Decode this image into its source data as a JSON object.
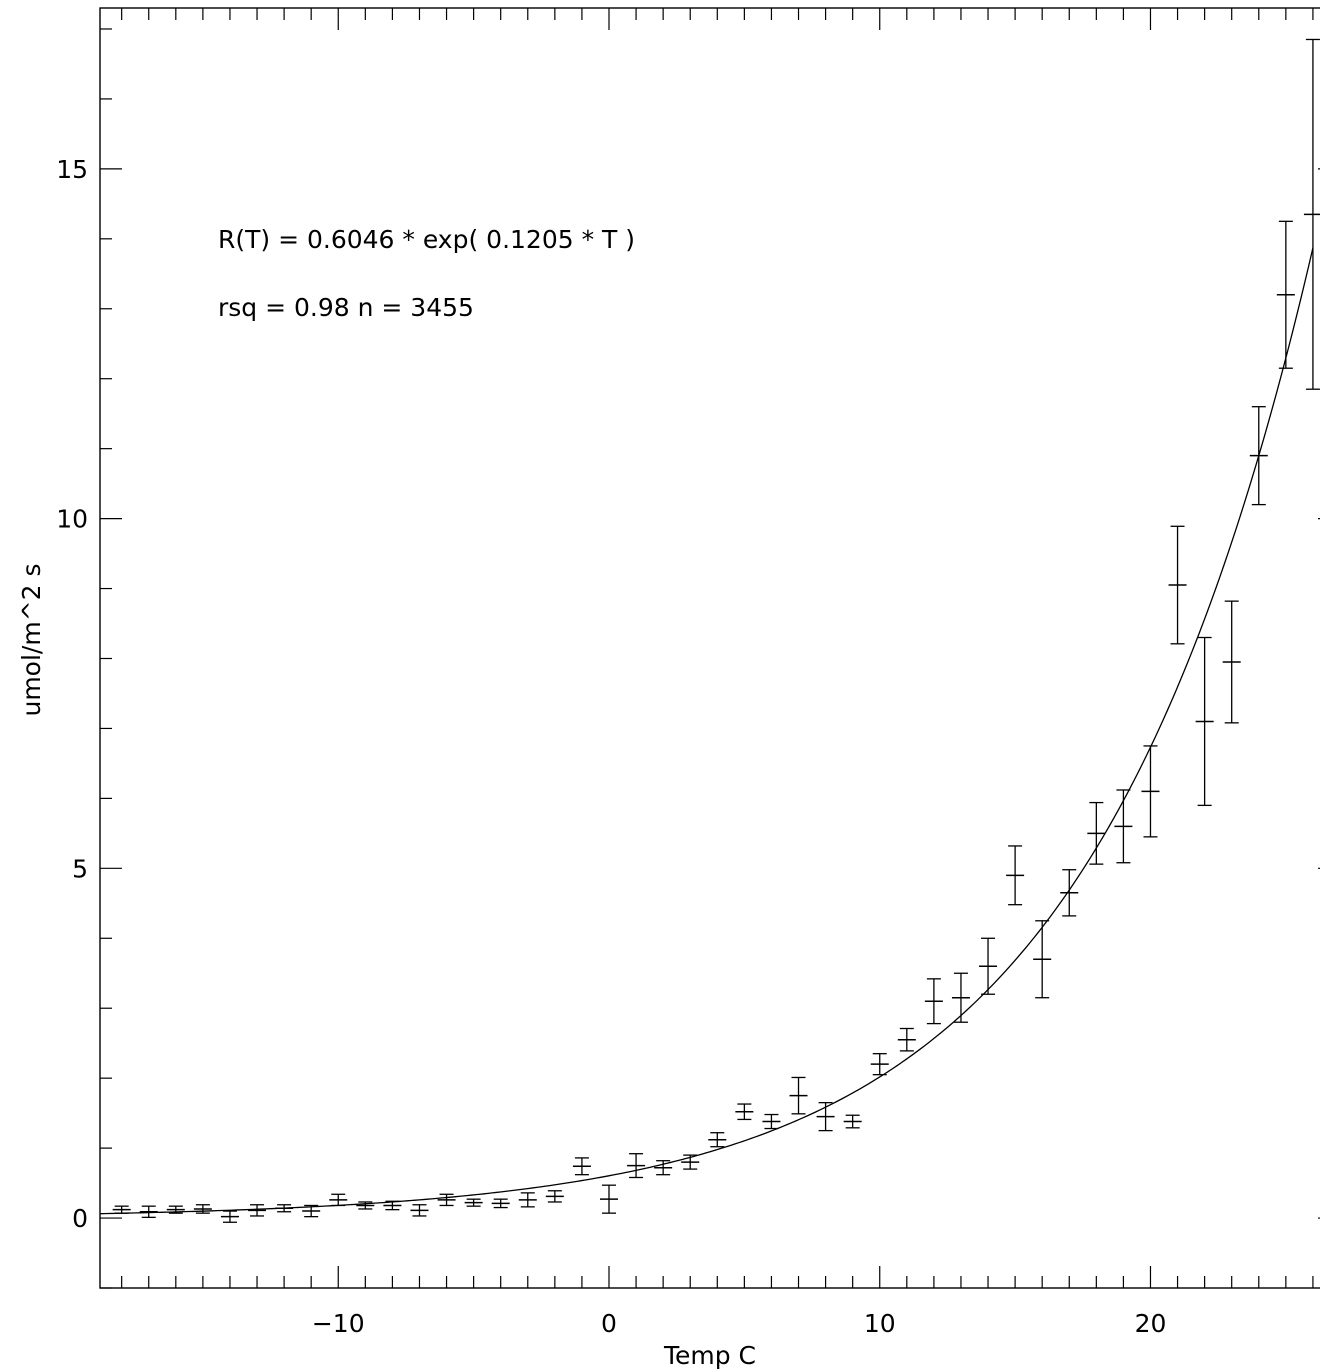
{
  "chart_data": {
    "type": "scatter",
    "title": "",
    "xlabel": "Temp C",
    "ylabel": "umol/m^2 s",
    "xlim": [
      -18.8,
      27
    ],
    "ylim": [
      -1,
      17.3
    ],
    "x_ticks": [
      -10,
      0,
      10,
      20
    ],
    "y_ticks": [
      0,
      5,
      10,
      15
    ],
    "x_tick_labels": [
      "−10",
      "0",
      "10",
      "20"
    ],
    "y_tick_labels": [
      "0",
      "5",
      "10",
      "15"
    ],
    "x_minor_step": 1,
    "y_minor_step": 1,
    "grid": false,
    "annotations": [
      "R(T) = 0.6046 * exp( 0.1205 * T )",
      "rsq = 0.98 n = 3455"
    ],
    "fit": {
      "a": 0.6046,
      "b": 0.1205,
      "x_range": [
        -18.8,
        26
      ]
    },
    "series": [
      {
        "x": [
          -18,
          -17,
          -16,
          -15,
          -14,
          -13,
          -12,
          -11,
          -10,
          -9,
          -8,
          -7,
          -6,
          -5,
          -4,
          -3,
          -2,
          -1,
          0,
          1,
          2,
          3,
          4,
          5,
          6,
          7,
          8,
          9,
          10,
          11,
          12,
          13,
          14,
          15,
          16,
          17,
          18,
          19,
          20,
          21,
          22,
          23,
          24,
          25,
          26
        ],
        "y": [
          0.12,
          0.09,
          0.12,
          0.13,
          0.02,
          0.11,
          0.14,
          0.1,
          0.26,
          0.18,
          0.18,
          0.11,
          0.26,
          0.22,
          0.21,
          0.26,
          0.31,
          0.74,
          0.27,
          0.75,
          0.72,
          0.8,
          1.12,
          1.52,
          1.38,
          1.75,
          1.45,
          1.38,
          2.2,
          2.55,
          3.1,
          3.15,
          3.6,
          4.9,
          3.7,
          4.65,
          5.5,
          5.6,
          6.1,
          9.05,
          7.1,
          7.95,
          10.9,
          13.2,
          14.35
        ],
        "err": [
          0.05,
          0.08,
          0.05,
          0.06,
          0.08,
          0.08,
          0.05,
          0.08,
          0.08,
          0.05,
          0.06,
          0.08,
          0.08,
          0.05,
          0.06,
          0.1,
          0.08,
          0.12,
          0.2,
          0.17,
          0.1,
          0.1,
          0.1,
          0.11,
          0.1,
          0.26,
          0.2,
          0.09,
          0.15,
          0.16,
          0.32,
          0.35,
          0.4,
          0.42,
          0.55,
          0.33,
          0.44,
          0.52,
          0.65,
          0.84,
          1.2,
          0.87,
          0.7,
          1.05,
          2.5
        ]
      }
    ]
  }
}
